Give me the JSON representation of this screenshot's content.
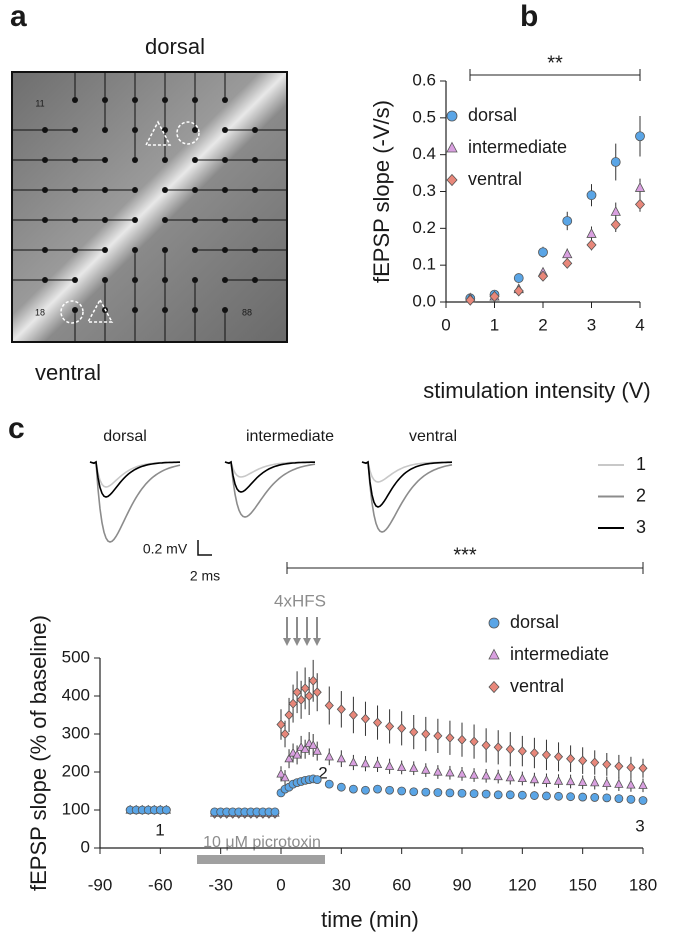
{
  "panel_labels": [
    "a",
    "b",
    "c"
  ],
  "image": {
    "top": "dorsal",
    "bottom": "ventral",
    "electrodes": [
      "11",
      "18",
      "88"
    ]
  },
  "chart_data": [
    {
      "type": "scatter",
      "xlabel": "stimulation intensity (V)",
      "ylabel": "fEPSP slope (-V/s)",
      "significance": "**",
      "x": [
        0.5,
        1,
        1.5,
        2,
        2.5,
        3,
        3.5,
        4
      ],
      "xlim": [
        0,
        4
      ],
      "xticks": [
        0,
        1,
        2,
        3,
        4
      ],
      "ylim": [
        0,
        0.6
      ],
      "yticks": [
        {
          "value": 0,
          "label": "0.0"
        },
        0.1,
        0.2,
        0.3,
        0.4,
        0.5,
        0.6
      ],
      "series": [
        {
          "name": "dorsal",
          "color": "#5aa5e6",
          "marker": "circle",
          "values": [
            0.01,
            0.02,
            0.065,
            0.135,
            0.22,
            0.29,
            0.38,
            0.45
          ],
          "errors": [
            0.005,
            0.005,
            0.008,
            0.015,
            0.025,
            0.03,
            0.05,
            0.055
          ]
        },
        {
          "name": "intermediate",
          "color": "#d9a0e0",
          "marker": "triangle",
          "values": [
            0.01,
            0.015,
            0.035,
            0.08,
            0.13,
            0.185,
            0.245,
            0.31
          ],
          "errors": [
            0.005,
            0.005,
            0.006,
            0.01,
            0.015,
            0.02,
            0.025,
            0.025
          ]
        },
        {
          "name": "ventral",
          "color": "#e8877a",
          "marker": "diamond",
          "values": [
            0.005,
            0.015,
            0.03,
            0.07,
            0.105,
            0.155,
            0.21,
            0.265
          ],
          "errors": [
            0.005,
            0.005,
            0.006,
            0.01,
            0.012,
            0.015,
            0.02,
            0.02
          ]
        }
      ]
    },
    {
      "type": "traces",
      "groups": [
        "dorsal",
        "intermediate",
        "ventral"
      ],
      "scale_bar": [
        "0.2 mV",
        "2 ms"
      ],
      "series": [
        {
          "name": "1",
          "color": "#c8c8c8"
        },
        {
          "name": "2",
          "color": "#8c8c8c"
        },
        {
          "name": "3",
          "color": "#000000"
        }
      ]
    },
    {
      "type": "scatter",
      "xlabel": "time (min)",
      "ylabel": "fEPSP slope (% of baseline)",
      "significance": "***",
      "stimulus": "4xHFS",
      "drug": "10 μM picrotoxin",
      "point_labels": [
        "1",
        "2",
        "3"
      ],
      "x": [
        -75,
        -72,
        -69,
        -66,
        -63,
        -60,
        -57,
        -33,
        -30,
        -27,
        -24,
        -21,
        -18,
        -15,
        -12,
        -9,
        -6,
        -3,
        0,
        2,
        4,
        6,
        8,
        10,
        12,
        14,
        16,
        18,
        24,
        30,
        36,
        42,
        48,
        54,
        60,
        66,
        72,
        78,
        84,
        90,
        96,
        102,
        108,
        114,
        120,
        126,
        132,
        138,
        144,
        150,
        156,
        162,
        168,
        174,
        180
      ],
      "xlim": [
        -90,
        180
      ],
      "xticks": [
        -90,
        -60,
        -30,
        0,
        30,
        60,
        90,
        120,
        150,
        180
      ],
      "ylim": [
        0,
        500
      ],
      "yticks": [
        0,
        100,
        200,
        300,
        400,
        500
      ],
      "series": [
        {
          "name": "ventral",
          "color": "#e8877a",
          "marker": "diamond",
          "values": [
            100,
            100,
            100,
            100,
            100,
            100,
            100,
            90,
            90,
            90,
            90,
            90,
            90,
            90,
            90,
            90,
            90,
            90,
            325,
            300,
            350,
            380,
            410,
            390,
            420,
            400,
            440,
            410,
            375,
            365,
            350,
            340,
            330,
            320,
            315,
            305,
            300,
            295,
            290,
            285,
            280,
            270,
            265,
            260,
            255,
            250,
            245,
            240,
            235,
            230,
            225,
            220,
            215,
            212,
            210
          ],
          "errors": [
            6,
            6,
            6,
            6,
            6,
            6,
            6,
            6,
            6,
            6,
            6,
            6,
            6,
            6,
            6,
            6,
            6,
            6,
            40,
            35,
            45,
            50,
            55,
            50,
            55,
            50,
            55,
            50,
            50,
            48,
            48,
            45,
            45,
            45,
            45,
            45,
            45,
            45,
            45,
            45,
            45,
            45,
            45,
            45,
            40,
            40,
            40,
            38,
            35,
            35,
            32,
            30,
            30,
            28,
            25
          ]
        },
        {
          "name": "intermediate",
          "color": "#d9a0e0",
          "marker": "triangle",
          "values": [
            100,
            100,
            100,
            100,
            100,
            100,
            100,
            92,
            92,
            92,
            92,
            92,
            92,
            92,
            92,
            92,
            92,
            92,
            195,
            185,
            235,
            250,
            245,
            265,
            260,
            275,
            270,
            255,
            240,
            235,
            225,
            222,
            220,
            215,
            212,
            210,
            205,
            200,
            198,
            195,
            192,
            190,
            188,
            185,
            183,
            180,
            178,
            176,
            175,
            173,
            172,
            170,
            168,
            166,
            165
          ],
          "errors": [
            6,
            6,
            6,
            6,
            6,
            6,
            6,
            6,
            6,
            6,
            6,
            6,
            6,
            6,
            6,
            6,
            6,
            6,
            20,
            20,
            25,
            25,
            25,
            30,
            25,
            30,
            30,
            25,
            22,
            22,
            20,
            20,
            20,
            20,
            18,
            18,
            18,
            18,
            18,
            18,
            18,
            18,
            18,
            18,
            18,
            18,
            18,
            18,
            18,
            18,
            18,
            18,
            18,
            18,
            18
          ]
        },
        {
          "name": "dorsal",
          "color": "#5aa5e6",
          "marker": "circle",
          "values": [
            100,
            100,
            100,
            100,
            100,
            100,
            100,
            95,
            95,
            95,
            95,
            95,
            95,
            95,
            95,
            95,
            95,
            95,
            145,
            155,
            160,
            168,
            172,
            175,
            178,
            180,
            182,
            180,
            168,
            160,
            155,
            152,
            155,
            152,
            150,
            148,
            147,
            146,
            145,
            144,
            143,
            142,
            140,
            140,
            139,
            138,
            137,
            136,
            135,
            134,
            133,
            132,
            130,
            128,
            125
          ],
          "errors": [
            5,
            5,
            5,
            5,
            5,
            5,
            5,
            5,
            5,
            5,
            5,
            5,
            5,
            5,
            5,
            5,
            5,
            5,
            8,
            8,
            8,
            8,
            8,
            8,
            8,
            8,
            8,
            8,
            6,
            6,
            6,
            6,
            6,
            6,
            6,
            6,
            6,
            6,
            6,
            6,
            6,
            6,
            6,
            6,
            6,
            6,
            6,
            6,
            6,
            6,
            6,
            6,
            6,
            6,
            6
          ]
        }
      ]
    }
  ]
}
